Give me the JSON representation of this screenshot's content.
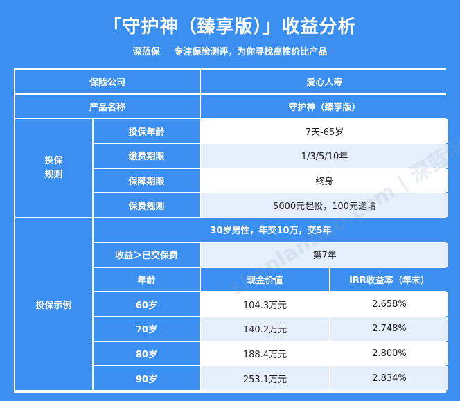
{
  "header": {
    "title": "「守护神（臻享版）」收益分析",
    "brand": "深蓝保",
    "tagline": "专注保险测评，为你寻找高性价比产品"
  },
  "watermark": "shenlanbao.com | 深蓝保 | 诚信",
  "table": {
    "company_label": "保险公司",
    "company_value": "爱心人寿",
    "product_label": "产品名称",
    "product_value": "守护神（臻享版）",
    "rules_group_label": "投保规则",
    "rules": [
      {
        "label": "投保年龄",
        "value": "7天-65岁"
      },
      {
        "label": "缴费期限",
        "value": "1/3/5/10年"
      },
      {
        "label": "保障期限",
        "value": "终身"
      },
      {
        "label": "保费规则",
        "value": "5000元起投，100元递增"
      }
    ],
    "example_group_label": "投保示例",
    "example_assumption": "30岁男性，年交10万，交5年",
    "breakeven_label": "收益＞已交保费",
    "breakeven_value": "第7年",
    "columns": [
      "年龄",
      "现金价值",
      "IRR收益率（年末）"
    ],
    "rows": [
      {
        "age": "60岁",
        "cash_value": "104.3万元",
        "irr": "2.658%"
      },
      {
        "age": "70岁",
        "cash_value": "140.2万元",
        "irr": "2.748%"
      },
      {
        "age": "80岁",
        "cash_value": "188.4万元",
        "irr": "2.800%"
      },
      {
        "age": "90岁",
        "cash_value": "253.1万元",
        "irr": "2.834%"
      }
    ]
  },
  "colors": {
    "blue": "#3a8ff0",
    "light_row": "#e4effb",
    "white": "#ffffff"
  }
}
